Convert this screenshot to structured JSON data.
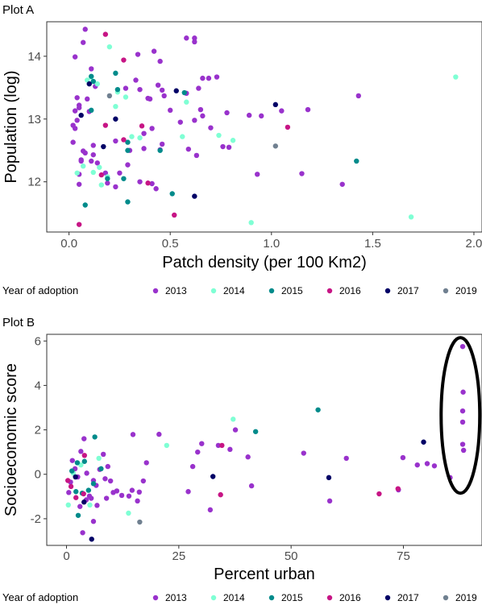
{
  "chart_data": [
    {
      "panel_label": "Plot A",
      "type": "scatter",
      "xlabel": "Patch density (per 100 Km2)",
      "ylabel": "Population (log)",
      "xlim": [
        -0.11,
        2.04
      ],
      "ylim": [
        11.2,
        14.55
      ],
      "x_ticks": [
        0.0,
        0.5,
        1.0,
        1.5,
        2.0
      ],
      "x_tick_labels": [
        "0.0",
        "0.5",
        "1.0",
        "1.5",
        "2.0"
      ],
      "y_ticks": [
        12,
        13,
        14
      ],
      "y_tick_labels": [
        "12",
        "13",
        "14"
      ],
      "legend_title": "Year of adoption",
      "legend_position": "bottom",
      "grid": false,
      "series": [
        {
          "name": "2013",
          "color": "#9932CC",
          "points": [
            [
              0.08,
              14.43
            ],
            [
              0.07,
              14.22
            ],
            [
              0.03,
              13.99
            ],
            [
              0.11,
              13.8
            ],
            [
              0.13,
              13.52
            ],
            [
              0.04,
              13.34
            ],
            [
              0.09,
              13.32
            ],
            [
              0.05,
              13.22
            ],
            [
              0.05,
              13.18
            ],
            [
              0.03,
              13.13
            ],
            [
              0.1,
              13.12
            ],
            [
              0.04,
              12.98
            ],
            [
              0.03,
              12.85
            ],
            [
              0.02,
              12.9
            ],
            [
              0.02,
              12.63
            ],
            [
              0.12,
              12.58
            ],
            [
              0.12,
              12.43
            ],
            [
              0.07,
              12.49
            ],
            [
              0.06,
              12.35
            ],
            [
              0.08,
              12.46
            ],
            [
              0.06,
              12.33
            ],
            [
              0.11,
              12.33
            ],
            [
              0.05,
              12.12
            ],
            [
              0.05,
              11.96
            ],
            [
              0.14,
              12.3
            ],
            [
              0.34,
              14.03
            ],
            [
              0.42,
              14.08
            ],
            [
              0.45,
              13.92
            ],
            [
              0.58,
              14.29
            ],
            [
              0.62,
              14.29
            ],
            [
              0.62,
              14.23
            ],
            [
              0.44,
              13.54
            ],
            [
              0.47,
              13.37
            ],
            [
              0.58,
              13.41
            ],
            [
              0.64,
              13.49
            ],
            [
              0.66,
              13.65
            ],
            [
              0.69,
              13.65
            ],
            [
              0.73,
              13.67
            ],
            [
              0.28,
              13.49
            ],
            [
              0.33,
              13.62
            ],
            [
              0.39,
              13.33
            ],
            [
              0.35,
              13.47
            ],
            [
              0.46,
              13.46
            ],
            [
              0.4,
              13.32
            ],
            [
              0.5,
              13.14
            ],
            [
              0.55,
              12.95
            ],
            [
              0.62,
              12.98
            ],
            [
              0.65,
              13.15
            ],
            [
              0.66,
              13.05
            ],
            [
              0.7,
              12.86
            ],
            [
              0.78,
              13.1
            ],
            [
              0.89,
              13.06
            ],
            [
              0.95,
              13.05
            ],
            [
              1.05,
              13.13
            ],
            [
              1.18,
              13.15
            ],
            [
              1.43,
              13.37
            ],
            [
              0.37,
              12.77
            ],
            [
              0.41,
              12.85
            ],
            [
              0.46,
              12.6
            ],
            [
              0.45,
              12.51
            ],
            [
              0.59,
              12.52
            ],
            [
              0.63,
              12.42
            ],
            [
              0.76,
              12.56
            ],
            [
              0.79,
              12.55
            ],
            [
              0.23,
              12.65
            ],
            [
              0.3,
              12.5
            ],
            [
              0.37,
              12.53
            ],
            [
              0.29,
              12.27
            ],
            [
              0.25,
              12.14
            ],
            [
              0.18,
              12.14
            ],
            [
              0.19,
              11.98
            ],
            [
              0.23,
              11.92
            ],
            [
              0.35,
              12.0
            ],
            [
              0.41,
              11.97
            ],
            [
              0.43,
              11.89
            ],
            [
              0.93,
              12.12
            ],
            [
              1.15,
              12.13
            ],
            [
              1.35,
              11.96
            ]
          ]
        },
        {
          "name": "2014",
          "color": "#7FFFD4",
          "points": [
            [
              0.2,
              14.15
            ],
            [
              0.11,
              13.67
            ],
            [
              0.09,
              13.62
            ],
            [
              0.14,
              13.56
            ],
            [
              0.24,
              13.43
            ],
            [
              0.28,
              13.35
            ],
            [
              0.23,
              13.2
            ],
            [
              0.58,
              13.27
            ],
            [
              1.91,
              13.67
            ],
            [
              0.31,
              12.72
            ],
            [
              0.35,
              12.7
            ],
            [
              0.56,
              12.72
            ],
            [
              0.74,
              12.74
            ],
            [
              0.81,
              12.66
            ],
            [
              0.07,
              12.25
            ],
            [
              0.15,
              12.23
            ],
            [
              0.12,
              12.15
            ],
            [
              0.04,
              12.14
            ],
            [
              0.19,
              12.08
            ],
            [
              0.16,
              11.95
            ],
            [
              0.9,
              11.35
            ],
            [
              1.69,
              11.44
            ]
          ]
        },
        {
          "name": "2015",
          "color": "#008B8B",
          "points": [
            [
              0.11,
              13.68
            ],
            [
              0.12,
              13.6
            ],
            [
              0.23,
              13.73
            ],
            [
              0.24,
              13.47
            ],
            [
              0.57,
              13.42
            ],
            [
              0.11,
              13.14
            ],
            [
              0.29,
              12.63
            ],
            [
              0.29,
              12.5
            ],
            [
              0.45,
              12.5
            ],
            [
              0.19,
              12.05
            ],
            [
              0.27,
              12.05
            ],
            [
              0.08,
              11.63
            ],
            [
              0.29,
              11.68
            ],
            [
              0.51,
              11.81
            ],
            [
              1.42,
              12.33
            ]
          ]
        },
        {
          "name": "2016",
          "color": "#C71585",
          "points": [
            [
              0.18,
              14.35
            ],
            [
              0.27,
              13.94
            ],
            [
              0.18,
              12.9
            ],
            [
              0.36,
              12.89
            ],
            [
              0.27,
              12.67
            ],
            [
              0.16,
              12.11
            ],
            [
              0.39,
              11.98
            ],
            [
              0.52,
              11.47
            ],
            [
              0.05,
              11.32
            ],
            [
              1.08,
              12.87
            ]
          ]
        },
        {
          "name": "2017",
          "color": "#000066",
          "points": [
            [
              0.1,
              13.56
            ],
            [
              0.53,
              13.45
            ],
            [
              1.02,
              13.23
            ],
            [
              0.06,
              13.06
            ],
            [
              0.23,
              13.0
            ],
            [
              0.17,
              12.56
            ],
            [
              0.62,
              11.77
            ]
          ]
        },
        {
          "name": "2019",
          "color": "#708090",
          "points": [
            [
              0.2,
              13.37
            ],
            [
              1.02,
              12.57
            ]
          ]
        }
      ]
    },
    {
      "panel_label": "Plot B",
      "type": "scatter",
      "xlabel": "Percent urban",
      "ylabel": "Socioeconomic score",
      "xlim": [
        -4.4,
        92.5
      ],
      "ylim": [
        -3.2,
        6.3
      ],
      "x_ticks": [
        0,
        25,
        50,
        75
      ],
      "x_tick_labels": [
        "0",
        "25",
        "50",
        "75"
      ],
      "y_ticks": [
        -2,
        0,
        2,
        4,
        6
      ],
      "y_tick_labels": [
        "-2",
        "0",
        "2",
        "4",
        "6"
      ],
      "legend_title": "Year of adoption",
      "legend_position": "bottom",
      "grid": false,
      "annotation": {
        "shape": "ellipse",
        "center": [
          87.7,
          2.65
        ],
        "radius": [
          4.3,
          3.5
        ]
      },
      "series": [
        {
          "name": "2013",
          "color": "#9932CC",
          "points": [
            [
              88.2,
              5.75
            ],
            [
              88.3,
              3.7
            ],
            [
              88.2,
              2.85
            ],
            [
              88.2,
              2.35
            ],
            [
              88.2,
              1.35
            ],
            [
              88.4,
              1.08
            ],
            [
              85.4,
              -0.15
            ],
            [
              81.9,
              0.38
            ],
            [
              80.3,
              0.48
            ],
            [
              78.1,
              0.42
            ],
            [
              74.9,
              0.75
            ],
            [
              73.9,
              -0.7
            ],
            [
              62.3,
              0.72
            ],
            [
              58.6,
              -1.2
            ],
            [
              52.8,
              0.95
            ],
            [
              41.2,
              -0.52
            ],
            [
              40.4,
              0.78
            ],
            [
              37.6,
              2.0
            ],
            [
              36.4,
              1.12
            ],
            [
              33.8,
              1.3
            ],
            [
              32.0,
              -1.6
            ],
            [
              30.1,
              1.38
            ],
            [
              29.2,
              1.0
            ],
            [
              28.1,
              0.35
            ],
            [
              27.1,
              -0.78
            ],
            [
              20.6,
              1.8
            ],
            [
              17.8,
              0.52
            ],
            [
              17.1,
              -0.3
            ],
            [
              16.2,
              -0.8
            ],
            [
              15.8,
              -1.2
            ],
            [
              14.6,
              -0.72
            ],
            [
              13.9,
              -0.98
            ],
            [
              12.3,
              -0.95
            ],
            [
              11.2,
              -0.75
            ],
            [
              10.4,
              -0.82
            ],
            [
              9.8,
              -0.3
            ],
            [
              9.2,
              0.35
            ],
            [
              8.6,
              -0.2
            ],
            [
              8.2,
              0.9
            ],
            [
              7.4,
              0.22
            ],
            [
              6.6,
              -0.5
            ],
            [
              6.0,
              -0.28
            ],
            [
              5.1,
              -0.98
            ],
            [
              4.5,
              0.05
            ],
            [
              3.9,
              1.6
            ],
            [
              3.2,
              1.03
            ],
            [
              2.5,
              -0.12
            ],
            [
              1.9,
              0.25
            ],
            [
              1.3,
              0.62
            ],
            [
              0.9,
              -0.35
            ],
            [
              0.5,
              -0.82
            ],
            [
              5.5,
              -1.08
            ],
            [
              6.8,
              -1.4
            ],
            [
              8.9,
              -1.08
            ],
            [
              3.0,
              -1.45
            ],
            [
              4.4,
              -1.15
            ],
            [
              3.6,
              -2.63
            ],
            [
              6.0,
              -2.12
            ],
            [
              14.8,
              1.79
            ]
          ]
        },
        {
          "name": "2014",
          "color": "#7FFFD4",
          "points": [
            [
              37.1,
              2.48
            ],
            [
              22.3,
              1.3
            ],
            [
              7.2,
              0.72
            ],
            [
              3.2,
              0.42
            ],
            [
              1.5,
              0.05
            ],
            [
              0.4,
              -1.38
            ],
            [
              5.2,
              -1.38
            ],
            [
              13.8,
              -1.75
            ]
          ]
        },
        {
          "name": "2015",
          "color": "#008B8B",
          "points": [
            [
              56.0,
              2.9
            ],
            [
              42.1,
              1.92
            ],
            [
              6.3,
              1.68
            ],
            [
              7.7,
              0.25
            ],
            [
              4.0,
              0.58
            ],
            [
              2.4,
              0.52
            ],
            [
              1.2,
              0.15
            ],
            [
              2.1,
              -0.78
            ],
            [
              3.5,
              -0.85
            ],
            [
              4.9,
              -0.72
            ],
            [
              6.0,
              -0.42
            ],
            [
              2.6,
              -1.85
            ]
          ]
        },
        {
          "name": "2016",
          "color": "#C71585",
          "points": [
            [
              34.6,
              1.3
            ],
            [
              34.3,
              -0.92
            ],
            [
              73.8,
              -0.65
            ],
            [
              69.6,
              -0.88
            ],
            [
              4.0,
              0.85
            ],
            [
              0.3,
              -0.28
            ],
            [
              1.0,
              -0.55
            ],
            [
              3.8,
              -0.88
            ],
            [
              2.1,
              -1.05
            ]
          ]
        },
        {
          "name": "2017",
          "color": "#000066",
          "points": [
            [
              79.5,
              1.45
            ],
            [
              58.4,
              -0.15
            ],
            [
              32.6,
              -0.1
            ],
            [
              2.0,
              -0.12
            ],
            [
              3.9,
              -1.25
            ],
            [
              5.6,
              -2.92
            ]
          ]
        },
        {
          "name": "2019",
          "color": "#708090",
          "points": [
            [
              16.3,
              -2.15
            ]
          ]
        }
      ]
    }
  ]
}
